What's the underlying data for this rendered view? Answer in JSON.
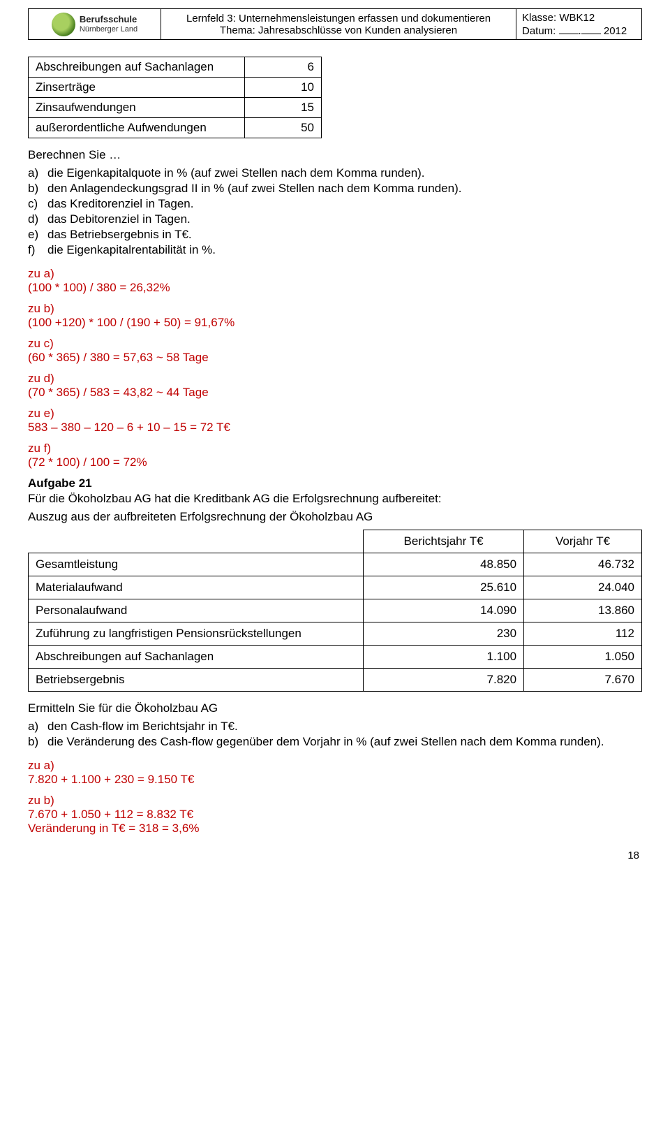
{
  "header": {
    "logo": {
      "line1": "Berufsschule",
      "line2": "Nürnberger Land"
    },
    "lernfeld": "Lernfeld 3: Unternehmensleistungen erfassen und dokumentieren",
    "thema": "Thema: Jahresabschlüsse von Kunden analysieren",
    "klasse_label": "Klasse:",
    "klasse_value": "WBK12",
    "datum_label": "Datum:",
    "datum_year": "2012"
  },
  "small_table": {
    "rows": [
      {
        "label": "Abschreibungen auf Sachanlagen",
        "value": "6"
      },
      {
        "label": "Zinserträge",
        "value": "10"
      },
      {
        "label": "Zinsaufwendungen",
        "value": "15"
      },
      {
        "label": "außerordentliche Aufwendungen",
        "value": "50"
      }
    ]
  },
  "q_intro": "Berechnen Sie …",
  "q_items": [
    {
      "mk": "a)",
      "tx": "die Eigenkapitalquote in % (auf zwei Stellen nach dem Komma runden)."
    },
    {
      "mk": "b)",
      "tx": "den Anlagendeckungsgrad II in % (auf zwei Stellen nach dem Komma runden)."
    },
    {
      "mk": "c)",
      "tx": "das Kreditorenziel in Tagen."
    },
    {
      "mk": "d)",
      "tx": "das Debitorenziel in Tagen."
    },
    {
      "mk": "e)",
      "tx": "das Betriebsergebnis in T€."
    },
    {
      "mk": "f)",
      "tx": "die Eigenkapitalrentabilität in %."
    }
  ],
  "answers": [
    {
      "head": "zu a)",
      "body": "(100 * 100) / 380 = 26,32%"
    },
    {
      "head": "zu b)",
      "body": "(100 +120) * 100 / (190 + 50) = 91,67%"
    },
    {
      "head": "zu c)",
      "body": "(60 * 365) / 380 = 57,63 ~ 58 Tage"
    },
    {
      "head": "zu d)",
      "body": "(70 * 365) / 583 = 43,82 ~ 44 Tage"
    },
    {
      "head": "zu e)",
      "body": "583 – 380 – 120 – 6 + 10 – 15 = 72 T€"
    },
    {
      "head": "zu f)",
      "body": "(72 * 100) / 100 = 72%"
    }
  ],
  "aufgabe21": {
    "title": "Aufgabe 21",
    "intro": "Für die Ökoholzbau AG hat die Kreditbank AG die Erfolgsrechnung aufbereitet:",
    "sub": "Auszug aus der aufbreiteten Erfolgsrechnung der Ökoholzbau AG",
    "col1": "Berichtsjahr T€",
    "col2": "Vorjahr T€",
    "rows": [
      {
        "label": "Gesamtleistung",
        "c1": "48.850",
        "c2": "46.732"
      },
      {
        "label": "Materialaufwand",
        "c1": "25.610",
        "c2": "24.040"
      },
      {
        "label": "Personalaufwand",
        "c1": "14.090",
        "c2": "13.860"
      },
      {
        "label": "Zuführung zu langfristigen Pensionsrückstellungen",
        "c1": "230",
        "c2": "112"
      },
      {
        "label": "Abschreibungen auf Sachanlagen",
        "c1": "1.100",
        "c2": "1.050"
      },
      {
        "label": "Betriebsergebnis",
        "c1": "7.820",
        "c2": "7.670"
      }
    ]
  },
  "ermitteln": {
    "lead": "Ermitteln Sie für die Ökoholzbau AG",
    "items": [
      {
        "mk": "a)",
        "tx": "den Cash-flow im Berichtsjahr in T€."
      },
      {
        "mk": "b)",
        "tx": "die Veränderung des Cash-flow gegenüber dem Vorjahr in % (auf zwei Stellen nach dem Komma runden)."
      }
    ]
  },
  "answers2": {
    "a_head": "zu a)",
    "a_body": "7.820 + 1.100 + 230 = 9.150 T€",
    "b_head": "zu b)",
    "b_body1": "7.670 + 1.050 + 112 = 8.832 T€",
    "b_body2": "Veränderung in T€ = 318 = 3,6%"
  },
  "page_num": "18",
  "colors": {
    "red": "#c00000",
    "text": "#000000",
    "border": "#000000"
  }
}
